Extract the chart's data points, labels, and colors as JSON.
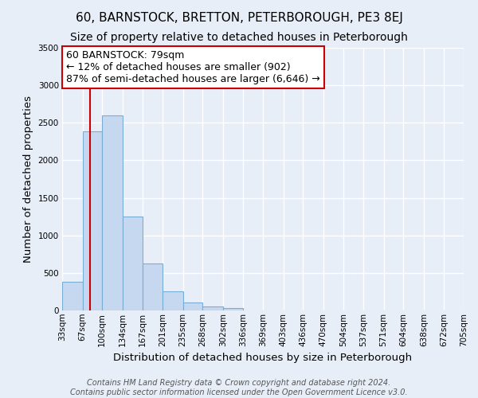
{
  "title": "60, BARNSTOCK, BRETTON, PETERBOROUGH, PE3 8EJ",
  "subtitle": "Size of property relative to detached houses in Peterborough",
  "xlabel": "Distribution of detached houses by size in Peterborough",
  "ylabel": "Number of detached properties",
  "bar_values": [
    380,
    2390,
    2600,
    1250,
    630,
    255,
    105,
    50,
    30,
    0,
    0,
    0,
    0,
    0,
    0,
    0,
    0,
    0,
    0,
    0
  ],
  "bin_labels": [
    "33sqm",
    "67sqm",
    "100sqm",
    "134sqm",
    "167sqm",
    "201sqm",
    "235sqm",
    "268sqm",
    "302sqm",
    "336sqm",
    "369sqm",
    "403sqm",
    "436sqm",
    "470sqm",
    "504sqm",
    "537sqm",
    "571sqm",
    "604sqm",
    "638sqm",
    "672sqm",
    "705sqm"
  ],
  "bar_color": "#c5d8f0",
  "bar_edge_color": "#7aadd4",
  "vline_x": 79,
  "vline_color": "#cc0000",
  "bin_edges": [
    33,
    67,
    100,
    134,
    167,
    201,
    235,
    268,
    302,
    336,
    369,
    403,
    436,
    470,
    504,
    537,
    571,
    604,
    638,
    672,
    705
  ],
  "ylim": [
    0,
    3500
  ],
  "yticks": [
    0,
    500,
    1000,
    1500,
    2000,
    2500,
    3000,
    3500
  ],
  "annotation_title": "60 BARNSTOCK: 79sqm",
  "annotation_line1": "← 12% of detached houses are smaller (902)",
  "annotation_line2": "87% of semi-detached houses are larger (6,646) →",
  "annotation_box_color": "#ffffff",
  "annotation_border_color": "#cc0000",
  "footer_line1": "Contains HM Land Registry data © Crown copyright and database right 2024.",
  "footer_line2": "Contains public sector information licensed under the Open Government Licence v3.0.",
  "background_color": "#e8eef8",
  "grid_color": "#ffffff",
  "title_fontsize": 11,
  "subtitle_fontsize": 10,
  "axis_label_fontsize": 9.5,
  "tick_fontsize": 7.5,
  "annotation_fontsize": 9,
  "footer_fontsize": 7
}
